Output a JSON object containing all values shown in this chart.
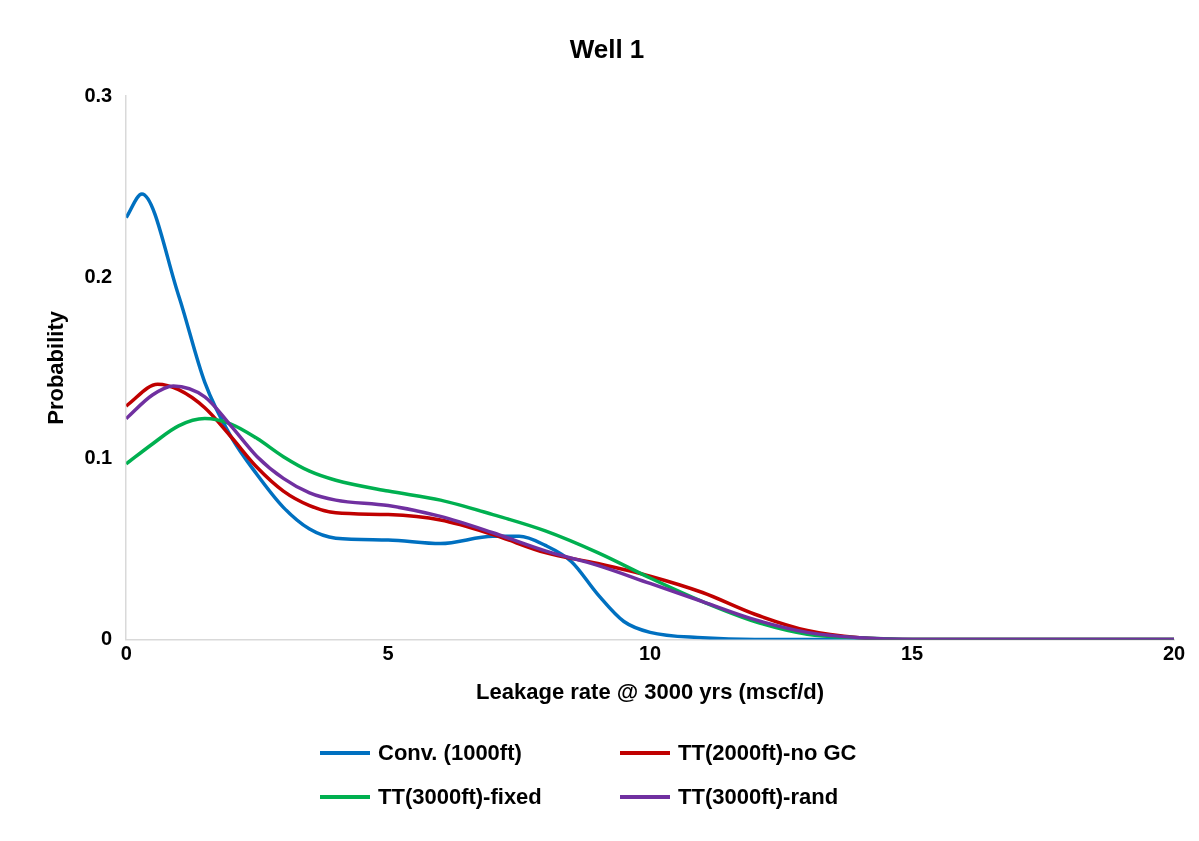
{
  "chart_data": {
    "type": "line",
    "title": "Well 1",
    "xlabel": "Leakage rate @ 3000 yrs (mscf/d)",
    "ylabel": "Probability",
    "xlim": [
      0,
      20
    ],
    "xticks": [
      0,
      5,
      10,
      15,
      20
    ],
    "ylim": [
      0,
      0.3
    ],
    "yticks": [
      0,
      0.1,
      0.2,
      0.3
    ],
    "grid": false,
    "legend": "bottom",
    "marker": "none",
    "line_style": "solid",
    "series": [
      {
        "name": "Conv. (1000ft)",
        "color": "#0070c0",
        "x": [
          0,
          0.3,
          1,
          1.5,
          2,
          2.5,
          3,
          3.5,
          4,
          5,
          6,
          7,
          7.5,
          8,
          8.5,
          9,
          9.5,
          10,
          11,
          12,
          20
        ],
        "values": [
          0.233,
          0.246,
          0.19,
          0.142,
          0.112,
          0.091,
          0.073,
          0.061,
          0.056,
          0.055,
          0.053,
          0.057,
          0.057,
          0.052,
          0.043,
          0.025,
          0.01,
          0.004,
          0.001,
          0,
          0
        ]
      },
      {
        "name": "TT(2000ft)-no GC",
        "color": "#c00000",
        "x": [
          0,
          0.6,
          1,
          1.5,
          2,
          2.5,
          3,
          3.5,
          4,
          5,
          6,
          7,
          8,
          9,
          10,
          11,
          12,
          13,
          14,
          15,
          20
        ],
        "values": [
          0.129,
          0.141,
          0.138,
          0.128,
          0.112,
          0.095,
          0.082,
          0.074,
          0.07,
          0.069,
          0.066,
          0.058,
          0.048,
          0.042,
          0.035,
          0.026,
          0.014,
          0.005,
          0.001,
          0,
          0
        ]
      },
      {
        "name": "TT(3000ft)-fixed",
        "color": "#00b050",
        "x": [
          0,
          0.5,
          1,
          1.5,
          2,
          2.5,
          3,
          3.5,
          4,
          5,
          6,
          7,
          8,
          9,
          10,
          11,
          12,
          13,
          14,
          15,
          20
        ],
        "values": [
          0.097,
          0.108,
          0.118,
          0.122,
          0.119,
          0.111,
          0.101,
          0.093,
          0.088,
          0.082,
          0.077,
          0.069,
          0.06,
          0.048,
          0.034,
          0.021,
          0.01,
          0.003,
          0.001,
          0,
          0
        ]
      },
      {
        "name": "TT(3000ft)-rand",
        "color": "#7030a0",
        "x": [
          0,
          0.5,
          0.9,
          1.5,
          2,
          2.5,
          3,
          3.5,
          4,
          5,
          6,
          7,
          8,
          9,
          10,
          11,
          12,
          13,
          14,
          15,
          20
        ],
        "values": [
          0.122,
          0.135,
          0.14,
          0.134,
          0.118,
          0.101,
          0.089,
          0.081,
          0.077,
          0.074,
          0.068,
          0.059,
          0.049,
          0.041,
          0.031,
          0.021,
          0.011,
          0.004,
          0.001,
          0,
          0
        ]
      }
    ]
  }
}
